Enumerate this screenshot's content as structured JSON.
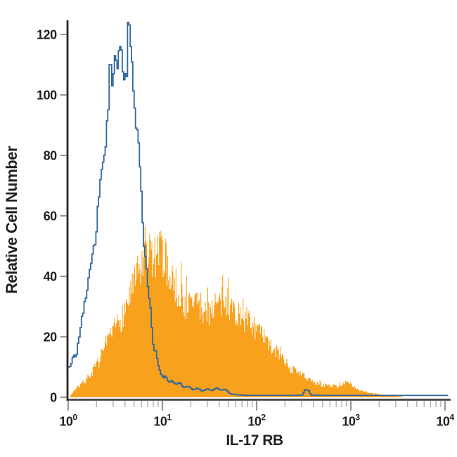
{
  "figure": {
    "background": "#ffffff"
  },
  "chart_data": {
    "type": "area",
    "subtype": "flow-cytometry-overlay-histogram",
    "title": "",
    "xlabel": "IL-17 RB",
    "ylabel": "Relative Cell Number",
    "x_scale": "log10",
    "x_range_exponents": [
      0,
      4
    ],
    "ylim": [
      0,
      128
    ],
    "grid": false,
    "legend": null,
    "y_ticks": [
      0,
      20,
      40,
      60,
      80,
      100,
      120
    ],
    "x_major_ticks": [
      {
        "base": "10",
        "exp": "0"
      },
      {
        "base": "10",
        "exp": "1"
      },
      {
        "base": "10",
        "exp": "2"
      },
      {
        "base": "10",
        "exp": "3"
      },
      {
        "base": "10",
        "exp": "4"
      }
    ],
    "x_minor_multiples": [
      2,
      3,
      4,
      5,
      6,
      7,
      8,
      9
    ],
    "y_axis_color": "#26241f",
    "x_axis_color": "#45433c",
    "tick_color": "#98968f",
    "minor_tick_color": "#b3b3b0",
    "label_color": "#231f20",
    "noise_seed": 7,
    "series": [
      {
        "name": "open histogram (unstained control)",
        "style": "open-line-steps",
        "color": "#30689e",
        "peak_value": 124,
        "noise": 0.05,
        "points_log_value": [
          [
            0.0,
            10
          ],
          [
            0.02,
            10.5
          ],
          [
            0.04,
            13
          ],
          [
            0.06,
            13.5
          ],
          [
            0.08,
            14
          ],
          [
            0.105,
            19
          ],
          [
            0.115,
            20
          ],
          [
            0.13,
            24
          ],
          [
            0.15,
            28.5
          ],
          [
            0.165,
            30
          ],
          [
            0.18,
            33
          ],
          [
            0.2,
            36
          ],
          [
            0.215,
            40
          ],
          [
            0.23,
            43
          ],
          [
            0.25,
            46
          ],
          [
            0.265,
            48
          ],
          [
            0.278,
            51
          ],
          [
            0.29,
            54
          ],
          [
            0.3,
            58
          ],
          [
            0.31,
            62
          ],
          [
            0.32,
            66
          ],
          [
            0.33,
            70
          ],
          [
            0.34,
            74
          ],
          [
            0.35,
            77
          ],
          [
            0.36,
            80
          ],
          [
            0.385,
            81
          ],
          [
            0.395,
            88
          ],
          [
            0.41,
            95
          ],
          [
            0.422,
            97
          ],
          [
            0.433,
            110
          ],
          [
            0.452,
            110
          ],
          [
            0.462,
            103
          ],
          [
            0.476,
            107
          ],
          [
            0.49,
            113
          ],
          [
            0.502,
            113
          ],
          [
            0.512,
            105
          ],
          [
            0.525,
            113
          ],
          [
            0.538,
            116
          ],
          [
            0.558,
            116
          ],
          [
            0.572,
            108
          ],
          [
            0.588,
            105
          ],
          [
            0.602,
            107
          ],
          [
            0.617,
            106
          ],
          [
            0.627,
            124
          ],
          [
            0.643,
            124
          ],
          [
            0.652,
            116
          ],
          [
            0.665,
            116
          ],
          [
            0.676,
            108
          ],
          [
            0.688,
            100
          ],
          [
            0.7,
            97
          ],
          [
            0.712,
            92
          ],
          [
            0.727,
            88
          ],
          [
            0.74,
            84
          ],
          [
            0.752,
            80
          ],
          [
            0.765,
            72
          ],
          [
            0.775,
            64
          ],
          [
            0.788,
            56
          ],
          [
            0.8,
            50
          ],
          [
            0.812,
            47
          ],
          [
            0.825,
            42
          ],
          [
            0.842,
            37
          ],
          [
            0.858,
            33
          ],
          [
            0.872,
            28
          ],
          [
            0.888,
            20
          ],
          [
            0.902,
            16.5
          ],
          [
            0.925,
            15
          ],
          [
            0.95,
            11
          ],
          [
            0.975,
            8
          ],
          [
            1.0,
            6.5
          ],
          [
            1.03,
            7
          ],
          [
            1.06,
            5
          ],
          [
            1.1,
            5.5
          ],
          [
            1.14,
            4.2
          ],
          [
            1.18,
            5
          ],
          [
            1.22,
            3.2
          ],
          [
            1.27,
            3.6
          ],
          [
            1.32,
            2.4
          ],
          [
            1.37,
            3.0
          ],
          [
            1.42,
            2.0
          ],
          [
            1.47,
            2.8
          ],
          [
            1.52,
            2.2
          ],
          [
            1.57,
            3.0
          ],
          [
            1.62,
            2.4
          ],
          [
            1.67,
            2.6
          ],
          [
            1.71,
            1.2
          ],
          [
            1.78,
            0.8
          ],
          [
            1.9,
            0.6
          ],
          [
            2.05,
            0.6
          ],
          [
            2.2,
            0.6
          ],
          [
            2.35,
            0.6
          ],
          [
            2.48,
            0.7
          ],
          [
            2.505,
            2.4
          ],
          [
            2.545,
            2.4
          ],
          [
            2.57,
            0.7
          ],
          [
            2.7,
            0.6
          ],
          [
            2.9,
            0.6
          ],
          [
            3.1,
            0.6
          ],
          [
            3.35,
            0.6
          ],
          [
            3.6,
            0.6
          ],
          [
            3.85,
            0.6
          ],
          [
            4.04,
            0.6
          ]
        ]
      },
      {
        "name": "filled histogram (IL-17 RB stained)",
        "style": "filled-steps",
        "color": "#f8a11d",
        "peak_value": 56,
        "noise": 0.2,
        "spike_chance": 0.07,
        "spike_gain": 0.15,
        "points_log_value": [
          [
            0.02,
            0.5
          ],
          [
            0.05,
            2
          ],
          [
            0.08,
            3
          ],
          [
            0.12,
            4
          ],
          [
            0.16,
            5
          ],
          [
            0.2,
            6.5
          ],
          [
            0.24,
            8
          ],
          [
            0.28,
            10
          ],
          [
            0.32,
            12
          ],
          [
            0.36,
            15
          ],
          [
            0.4,
            17
          ],
          [
            0.44,
            20
          ],
          [
            0.47,
            22
          ],
          [
            0.5,
            24
          ],
          [
            0.53,
            26
          ],
          [
            0.56,
            27
          ],
          [
            0.59,
            29
          ],
          [
            0.62,
            32
          ],
          [
            0.65,
            35
          ],
          [
            0.68,
            37
          ],
          [
            0.71,
            39
          ],
          [
            0.74,
            42
          ],
          [
            0.77,
            44
          ],
          [
            0.8,
            45
          ],
          [
            0.83,
            47
          ],
          [
            0.86,
            51
          ],
          [
            0.88,
            48
          ],
          [
            0.9,
            46
          ],
          [
            0.93,
            48
          ],
          [
            0.96,
            49
          ],
          [
            0.99,
            50
          ],
          [
            1.02,
            46
          ],
          [
            1.05,
            44
          ],
          [
            1.08,
            42
          ],
          [
            1.12,
            39
          ],
          [
            1.16,
            36
          ],
          [
            1.2,
            34
          ],
          [
            1.25,
            31
          ],
          [
            1.3,
            32
          ],
          [
            1.35,
            33
          ],
          [
            1.4,
            31
          ],
          [
            1.45,
            29
          ],
          [
            1.5,
            30
          ],
          [
            1.55,
            32
          ],
          [
            1.6,
            31
          ],
          [
            1.65,
            33
          ],
          [
            1.7,
            32
          ],
          [
            1.75,
            30
          ],
          [
            1.8,
            28
          ],
          [
            1.85,
            27
          ],
          [
            1.9,
            26
          ],
          [
            1.95,
            25
          ],
          [
            2.0,
            23
          ],
          [
            2.05,
            21
          ],
          [
            2.1,
            19
          ],
          [
            2.15,
            17
          ],
          [
            2.2,
            16
          ],
          [
            2.25,
            14
          ],
          [
            2.3,
            12
          ],
          [
            2.35,
            10
          ],
          [
            2.4,
            9
          ],
          [
            2.45,
            8
          ],
          [
            2.5,
            7
          ],
          [
            2.55,
            6
          ],
          [
            2.6,
            5
          ],
          [
            2.65,
            4.5
          ],
          [
            2.7,
            4.2
          ],
          [
            2.75,
            4.0
          ],
          [
            2.8,
            4.0
          ],
          [
            2.85,
            3.6
          ],
          [
            2.9,
            4.6
          ],
          [
            2.95,
            5.0
          ],
          [
            3.0,
            4.0
          ],
          [
            3.05,
            3.0
          ],
          [
            3.1,
            2.4
          ],
          [
            3.15,
            2.0
          ],
          [
            3.2,
            1.5
          ],
          [
            3.28,
            1.0
          ],
          [
            3.38,
            0.6
          ],
          [
            3.48,
            0.4
          ],
          [
            3.55,
            0.2
          ]
        ]
      }
    ]
  }
}
